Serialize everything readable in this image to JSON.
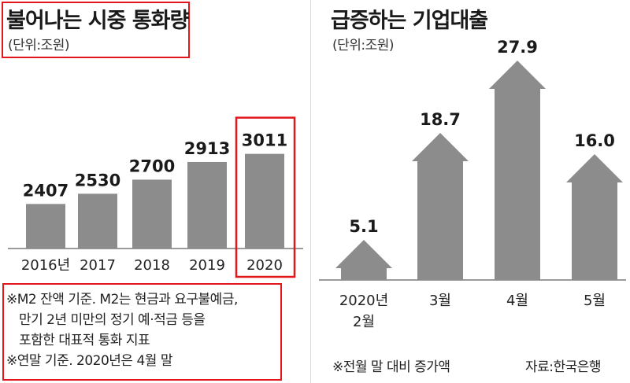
{
  "left": {
    "title": "불어나는 시중 통화량",
    "unit": "(단위:조원)",
    "notes": [
      "※M2 잔액 기준. M2는 현금과 요구불예금,",
      "만기 2년 미만의 정기 예·적금 등을",
      "포함한 대표적 통화 지표",
      "※연말 기준. 2020년은 4월 말"
    ]
  },
  "right": {
    "title": "급증하는 기업대출",
    "unit": "(단위:조원)",
    "footnote": "※전월 말 대비 증가액",
    "source": "자료:한국은행"
  },
  "colors": {
    "bar": "#8c8c8c",
    "highlight": "#e3161b",
    "baseline": "#7a7a7a"
  },
  "chart_data": [
    {
      "type": "bar",
      "title": "불어나는 시중 통화량",
      "unit": "(단위:조원)",
      "categories": [
        "2016년",
        "2017",
        "2018",
        "2019",
        "2020"
      ],
      "values": [
        2407,
        2530,
        2700,
        2913,
        3011
      ],
      "value_labels": [
        "2407",
        "2530",
        "2700",
        "2913",
        "3011"
      ],
      "highlight_index": 4
    },
    {
      "type": "bar",
      "title": "급증하는 기업대출",
      "unit": "(단위:조원)",
      "categories": [
        [
          "2020년",
          "2월"
        ],
        [
          "3월"
        ],
        [
          "4월"
        ],
        [
          "5월"
        ]
      ],
      "values": [
        5.1,
        18.7,
        27.9,
        16.0
      ],
      "value_labels": [
        "5.1",
        "18.7",
        "27.9",
        "16.0"
      ],
      "mark_shape": "arrow"
    }
  ]
}
